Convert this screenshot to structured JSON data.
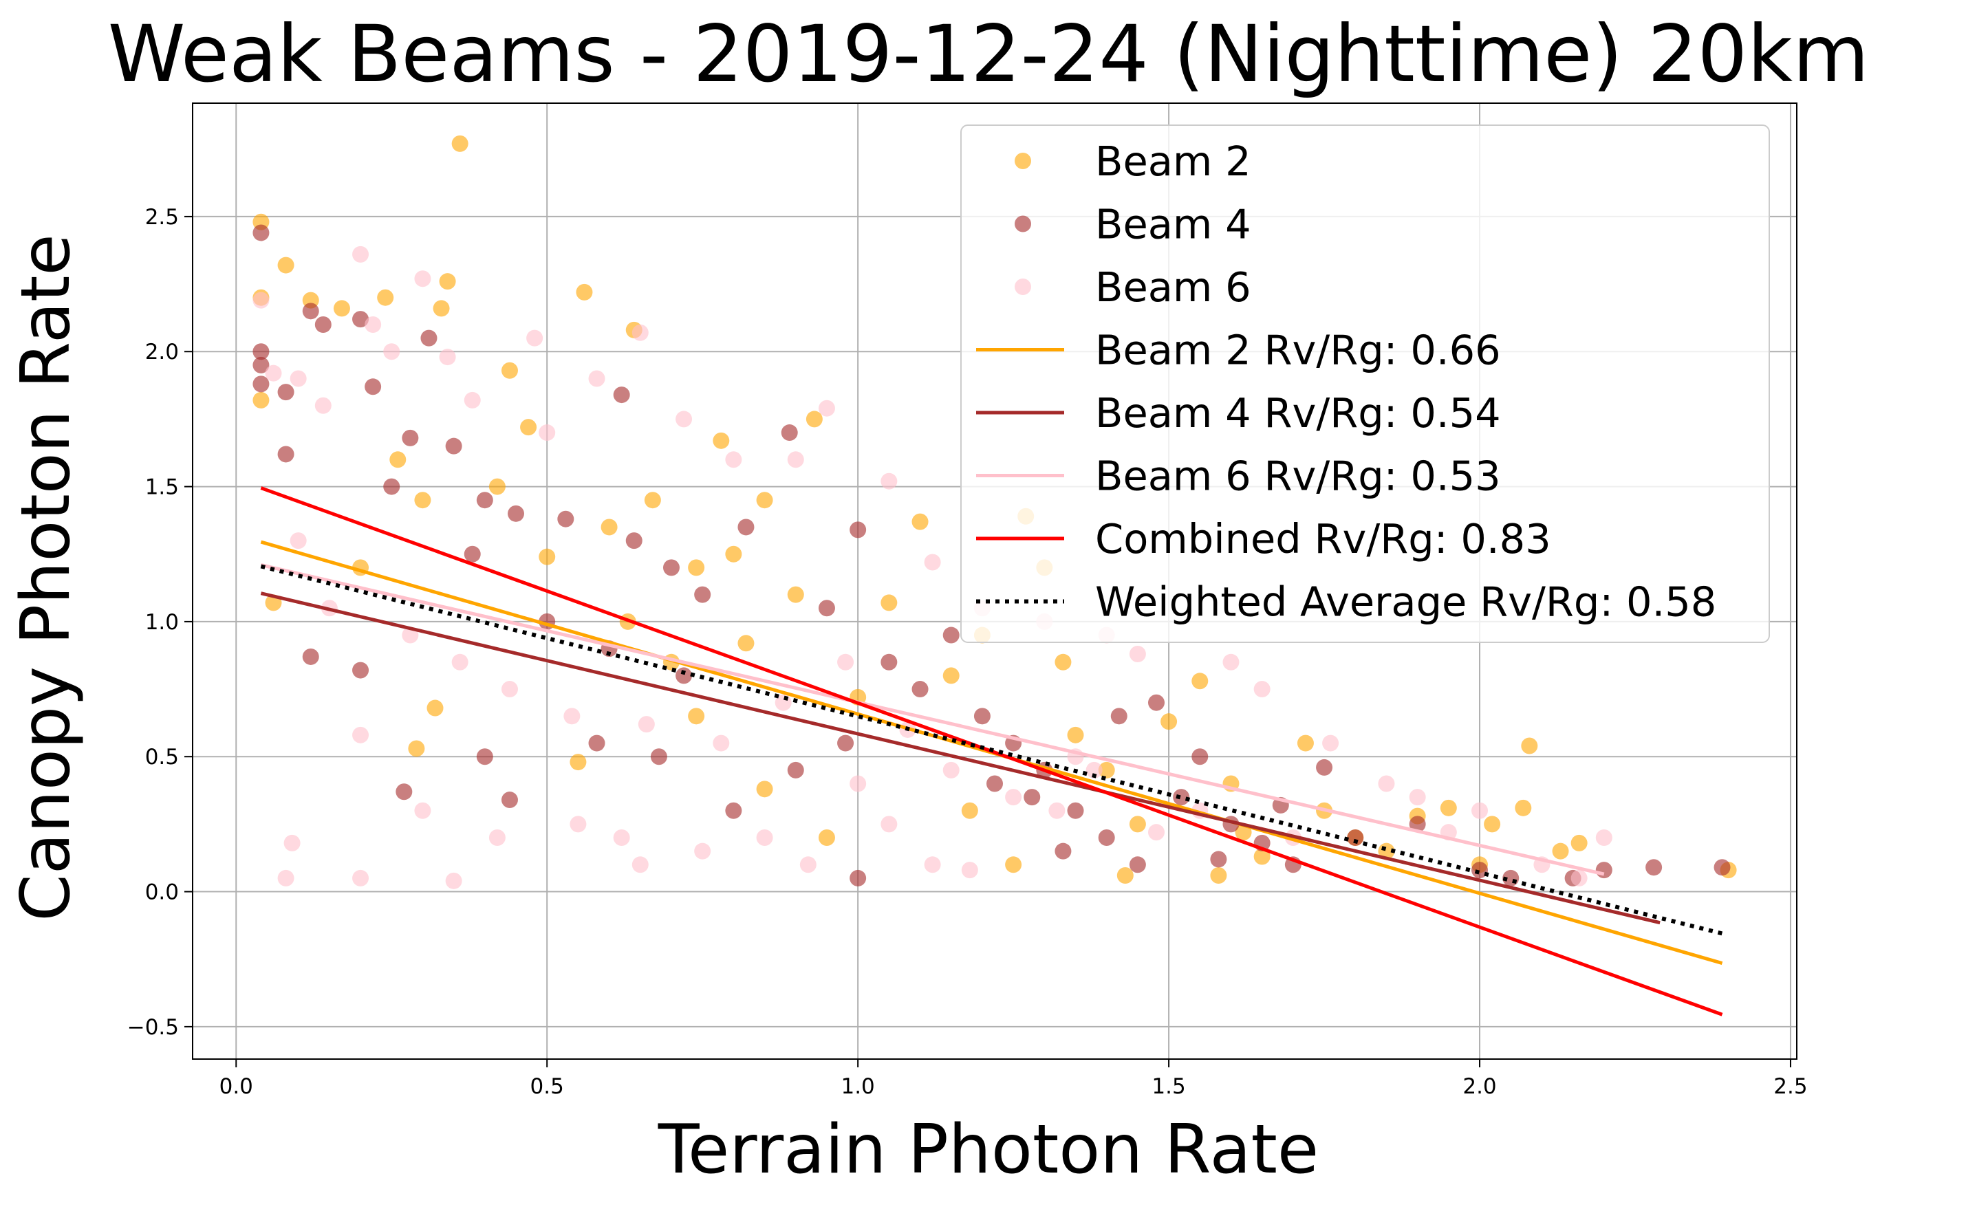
{
  "chart_data": {
    "type": "scatter",
    "title": "Weak Beams - 2019-12-24 (Nighttime) 20km",
    "xlabel": "Terrain Photon Rate",
    "ylabel": "Canopy Photon Rate",
    "xlim": [
      -0.07,
      2.51
    ],
    "ylim": [
      -0.62,
      2.92
    ],
    "xticks": [
      0.0,
      0.5,
      1.0,
      1.5,
      2.0,
      2.5
    ],
    "xtick_labels": [
      "0.0",
      "0.5",
      "1.0",
      "1.5",
      "2.0",
      "2.5"
    ],
    "yticks": [
      -0.5,
      0.0,
      0.5,
      1.0,
      1.5,
      2.0,
      2.5
    ],
    "ytick_labels": [
      "−0.5",
      "0.0",
      "0.5",
      "1.0",
      "1.5",
      "2.0",
      "2.5"
    ],
    "grid": true,
    "legend_position": "top-right",
    "series": [
      {
        "name": "Beam 2",
        "kind": "scatter",
        "color": "#ffa500",
        "alpha": 0.6,
        "points": [
          [
            0.04,
            2.48
          ],
          [
            0.04,
            2.2
          ],
          [
            0.04,
            1.82
          ],
          [
            0.08,
            2.32
          ],
          [
            0.12,
            2.19
          ],
          [
            0.17,
            2.16
          ],
          [
            0.24,
            2.2
          ],
          [
            0.33,
            2.16
          ],
          [
            0.34,
            2.26
          ],
          [
            0.36,
            2.77
          ],
          [
            0.26,
            1.6
          ],
          [
            0.44,
            1.93
          ],
          [
            0.47,
            1.72
          ],
          [
            0.56,
            2.22
          ],
          [
            0.64,
            2.08
          ],
          [
            0.06,
            1.07
          ],
          [
            0.29,
            0.53
          ],
          [
            0.32,
            0.68
          ],
          [
            0.55,
            0.48
          ],
          [
            0.5,
            1.24
          ],
          [
            0.6,
            1.35
          ],
          [
            0.67,
            1.45
          ],
          [
            0.74,
            1.2
          ],
          [
            0.8,
            1.25
          ],
          [
            0.85,
            1.45
          ],
          [
            0.9,
            1.1
          ],
          [
            0.93,
            1.75
          ],
          [
            0.78,
            1.67
          ],
          [
            0.7,
            0.85
          ],
          [
            0.74,
            0.65
          ],
          [
            0.85,
            0.38
          ],
          [
            0.95,
            0.2
          ],
          [
            1.05,
            1.07
          ],
          [
            1.1,
            1.37
          ],
          [
            1.15,
            0.8
          ],
          [
            1.2,
            0.95
          ],
          [
            1.27,
            1.39
          ],
          [
            1.3,
            1.2
          ],
          [
            1.35,
            0.58
          ],
          [
            1.4,
            0.45
          ],
          [
            1.45,
            0.25
          ],
          [
            1.5,
            0.63
          ],
          [
            1.55,
            0.78
          ],
          [
            1.6,
            0.4
          ],
          [
            1.65,
            0.13
          ],
          [
            1.72,
            0.55
          ],
          [
            1.75,
            0.3
          ],
          [
            1.8,
            0.2
          ],
          [
            1.85,
            0.15
          ],
          [
            1.9,
            0.28
          ],
          [
            1.95,
            0.31
          ],
          [
            2.0,
            0.1
          ],
          [
            2.02,
            0.25
          ],
          [
            2.07,
            0.31
          ],
          [
            2.08,
            0.54
          ],
          [
            2.13,
            0.15
          ],
          [
            2.16,
            0.18
          ],
          [
            2.4,
            0.08
          ],
          [
            1.25,
            0.1
          ],
          [
            1.33,
            0.85
          ],
          [
            1.18,
            0.3
          ],
          [
            1.0,
            0.72
          ],
          [
            0.82,
            0.92
          ],
          [
            0.63,
            1.0
          ],
          [
            0.42,
            1.5
          ],
          [
            0.3,
            1.45
          ],
          [
            0.2,
            1.2
          ],
          [
            1.43,
            0.06
          ],
          [
            1.58,
            0.06
          ],
          [
            1.62,
            0.22
          ]
        ]
      },
      {
        "name": "Beam 4",
        "kind": "scatter",
        "color": "#a52a2a",
        "alpha": 0.6,
        "points": [
          [
            0.04,
            2.44
          ],
          [
            0.04,
            2.0
          ],
          [
            0.04,
            1.95
          ],
          [
            0.04,
            1.88
          ],
          [
            0.08,
            1.85
          ],
          [
            0.08,
            1.62
          ],
          [
            0.12,
            2.15
          ],
          [
            0.14,
            2.1
          ],
          [
            0.2,
            2.12
          ],
          [
            0.22,
            1.87
          ],
          [
            0.31,
            2.05
          ],
          [
            0.28,
            1.68
          ],
          [
            0.35,
            1.65
          ],
          [
            0.4,
            1.45
          ],
          [
            0.45,
            1.4
          ],
          [
            0.53,
            1.38
          ],
          [
            0.62,
            1.84
          ],
          [
            0.64,
            1.3
          ],
          [
            0.7,
            1.2
          ],
          [
            0.75,
            1.1
          ],
          [
            0.82,
            1.35
          ],
          [
            0.89,
            1.7
          ],
          [
            0.95,
            1.05
          ],
          [
            1.0,
            1.34
          ],
          [
            1.05,
            0.85
          ],
          [
            1.1,
            0.75
          ],
          [
            1.2,
            0.65
          ],
          [
            1.25,
            0.55
          ],
          [
            1.3,
            0.45
          ],
          [
            1.35,
            0.3
          ],
          [
            1.4,
            0.2
          ],
          [
            1.45,
            0.1
          ],
          [
            1.48,
            0.7
          ],
          [
            1.55,
            0.5
          ],
          [
            1.6,
            0.25
          ],
          [
            1.65,
            0.18
          ],
          [
            1.7,
            0.1
          ],
          [
            1.75,
            0.46
          ],
          [
            1.8,
            0.2
          ],
          [
            1.9,
            0.25
          ],
          [
            2.0,
            0.08
          ],
          [
            2.05,
            0.05
          ],
          [
            2.15,
            0.05
          ],
          [
            2.2,
            0.08
          ],
          [
            2.28,
            0.09
          ],
          [
            2.39,
            0.09
          ],
          [
            0.12,
            0.87
          ],
          [
            0.2,
            0.82
          ],
          [
            0.27,
            0.37
          ],
          [
            0.4,
            0.5
          ],
          [
            0.44,
            0.34
          ],
          [
            0.58,
            0.55
          ],
          [
            0.68,
            0.5
          ],
          [
            0.8,
            0.3
          ],
          [
            0.9,
            0.45
          ],
          [
            1.0,
            0.05
          ],
          [
            0.98,
            0.55
          ],
          [
            1.15,
            0.95
          ],
          [
            1.22,
            0.4
          ],
          [
            1.28,
            0.35
          ],
          [
            1.33,
            0.15
          ],
          [
            1.42,
            0.65
          ],
          [
            1.52,
            0.35
          ],
          [
            1.58,
            0.12
          ],
          [
            1.68,
            0.32
          ],
          [
            0.72,
            0.8
          ],
          [
            0.6,
            0.9
          ],
          [
            0.5,
            1.0
          ],
          [
            0.38,
            1.25
          ],
          [
            0.25,
            1.5
          ]
        ]
      },
      {
        "name": "Beam 6",
        "kind": "scatter",
        "color": "#ffc0cb",
        "alpha": 0.6,
        "points": [
          [
            0.04,
            2.19
          ],
          [
            0.06,
            1.92
          ],
          [
            0.1,
            1.9
          ],
          [
            0.14,
            1.8
          ],
          [
            0.2,
            2.36
          ],
          [
            0.22,
            2.1
          ],
          [
            0.25,
            2.0
          ],
          [
            0.3,
            2.27
          ],
          [
            0.34,
            1.98
          ],
          [
            0.38,
            1.82
          ],
          [
            0.48,
            2.05
          ],
          [
            0.5,
            1.7
          ],
          [
            0.58,
            1.9
          ],
          [
            0.65,
            2.07
          ],
          [
            0.72,
            1.75
          ],
          [
            0.8,
            1.6
          ],
          [
            0.9,
            1.6
          ],
          [
            0.95,
            1.79
          ],
          [
            1.05,
            1.52
          ],
          [
            1.12,
            1.22
          ],
          [
            1.2,
            1.05
          ],
          [
            1.3,
            1.0
          ],
          [
            1.4,
            0.95
          ],
          [
            1.45,
            0.88
          ],
          [
            1.6,
            0.85
          ],
          [
            1.65,
            0.75
          ],
          [
            1.76,
            0.55
          ],
          [
            1.85,
            0.4
          ],
          [
            1.9,
            0.35
          ],
          [
            1.95,
            0.22
          ],
          [
            2.0,
            0.3
          ],
          [
            2.1,
            0.1
          ],
          [
            2.16,
            0.05
          ],
          [
            2.2,
            0.2
          ],
          [
            0.08,
            0.05
          ],
          [
            0.09,
            0.18
          ],
          [
            0.2,
            0.05
          ],
          [
            0.35,
            0.04
          ],
          [
            0.2,
            0.58
          ],
          [
            0.3,
            0.3
          ],
          [
            0.42,
            0.2
          ],
          [
            0.55,
            0.25
          ],
          [
            0.62,
            0.2
          ],
          [
            0.65,
            0.1
          ],
          [
            0.75,
            0.15
          ],
          [
            0.85,
            0.2
          ],
          [
            0.92,
            0.1
          ],
          [
            1.0,
            0.4
          ],
          [
            1.05,
            0.25
          ],
          [
            1.12,
            0.1
          ],
          [
            1.18,
            0.08
          ],
          [
            1.25,
            0.35
          ],
          [
            1.32,
            0.3
          ],
          [
            1.38,
            0.45
          ],
          [
            1.48,
            0.22
          ],
          [
            1.55,
            0.3
          ],
          [
            0.1,
            1.3
          ],
          [
            0.15,
            1.05
          ],
          [
            0.28,
            0.95
          ],
          [
            0.36,
            0.85
          ],
          [
            0.44,
            0.75
          ],
          [
            0.54,
            0.65
          ],
          [
            0.66,
            0.62
          ],
          [
            0.78,
            0.55
          ],
          [
            0.88,
            0.7
          ],
          [
            0.98,
            0.85
          ],
          [
            1.08,
            0.6
          ],
          [
            1.15,
            0.45
          ],
          [
            1.35,
            0.5
          ],
          [
            1.7,
            0.2
          ]
        ]
      },
      {
        "name": "Beam 2 Rv/Rg: 0.66",
        "kind": "line",
        "color": "#ffa500",
        "style": "solid",
        "x": [
          0.04,
          2.39
        ],
        "y": [
          1.295,
          -0.265
        ]
      },
      {
        "name": "Beam 4 Rv/Rg: 0.54",
        "kind": "line",
        "color": "#a52a2a",
        "style": "solid",
        "x": [
          0.04,
          2.29
        ],
        "y": [
          1.105,
          -0.115
        ]
      },
      {
        "name": "Beam 6 Rv/Rg: 0.53",
        "kind": "line",
        "color": "#ffc0cb",
        "style": "solid",
        "x": [
          0.04,
          2.2
        ],
        "y": [
          1.21,
          0.065
        ]
      },
      {
        "name": "Combined Rv/Rg: 0.83",
        "kind": "line",
        "color": "#ff0000",
        "style": "solid",
        "x": [
          0.04,
          2.39
        ],
        "y": [
          1.495,
          -0.455
        ]
      },
      {
        "name": "Weighted Average Rv/Rg: 0.58",
        "kind": "line",
        "color": "#000000",
        "style": "dotted",
        "x": [
          0.04,
          2.39
        ],
        "y": [
          1.205,
          -0.155
        ]
      }
    ]
  }
}
